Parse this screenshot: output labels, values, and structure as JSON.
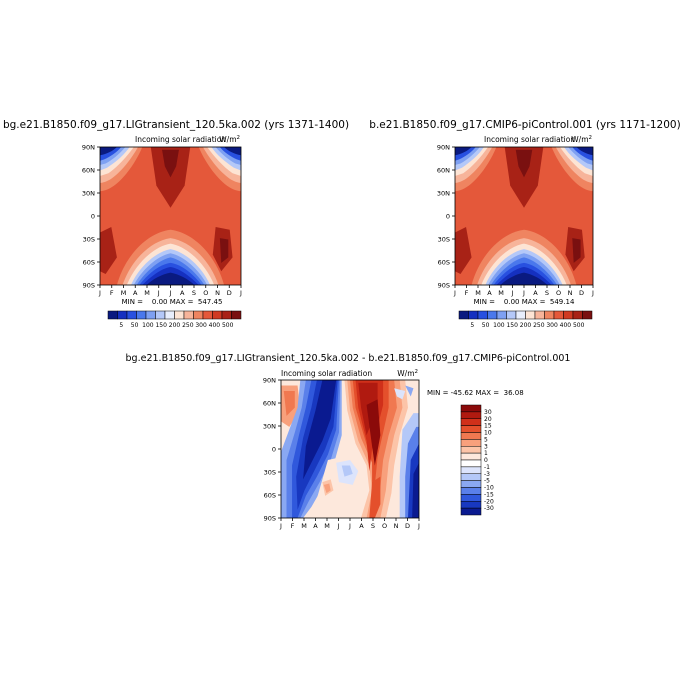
{
  "chart_data": [
    {
      "type": "heatmap",
      "title": "bg.e21.B1850.f09_g17.LIGtransient_120.5ka.002 (yrs 1371-1400)",
      "subtitle_left": "Incoming solar radiation",
      "units": "W/m",
      "units_superscript": "2",
      "stats": "MIN =    0.00 MAX =  547.45",
      "x_ticks": [
        "J",
        "F",
        "M",
        "A",
        "M",
        "J",
        "J",
        "A",
        "S",
        "O",
        "N",
        "D",
        "J"
      ],
      "y_ticks": [
        "90N",
        "60N",
        "30N",
        "0",
        "30S",
        "60S",
        "90S"
      ],
      "colorbar": {
        "labels": [
          "5",
          "50",
          "100",
          "150",
          "200",
          "250",
          "300",
          "400",
          "500"
        ],
        "colors": [
          "#0a1a80",
          "#1530c0",
          "#2850e0",
          "#4a78ec",
          "#7ea0f2",
          "#b4c8f8",
          "#e8eefc",
          "#fde4d4",
          "#f7b49a",
          "#ef8460",
          "#e4583a",
          "#d03a22",
          "#a82216",
          "#7a1010"
        ]
      },
      "field": "insolation",
      "grid": false
    },
    {
      "type": "heatmap",
      "title": "b.e21.B1850.f09_g17.CMIP6-piControl.001 (yrs 1171-1200)",
      "subtitle_left": "Incoming solar radiation",
      "units": "W/m",
      "units_superscript": "2",
      "stats": "MIN =    0.00 MAX =  549.14",
      "x_ticks": [
        "J",
        "F",
        "M",
        "A",
        "M",
        "J",
        "J",
        "A",
        "S",
        "O",
        "N",
        "D",
        "J"
      ],
      "y_ticks": [
        "90N",
        "60N",
        "30N",
        "0",
        "30S",
        "60S",
        "90S"
      ],
      "colorbar": {
        "labels": [
          "5",
          "50",
          "100",
          "150",
          "200",
          "250",
          "300",
          "400",
          "500"
        ],
        "colors": [
          "#0a1a80",
          "#1530c0",
          "#2850e0",
          "#4a78ec",
          "#7ea0f2",
          "#b4c8f8",
          "#e8eefc",
          "#fde4d4",
          "#f7b49a",
          "#ef8460",
          "#e4583a",
          "#d03a22",
          "#a82216",
          "#7a1010"
        ]
      },
      "field": "insolation",
      "grid": false
    },
    {
      "type": "heatmap",
      "title": "bg.e21.B1850.f09_g17.LIGtransient_120.5ka.002 - b.e21.B1850.f09_g17.CMIP6-piControl.001",
      "subtitle_left": "Incoming solar radiation",
      "units": "W/m",
      "units_superscript": "2",
      "stats": "MIN = -45.62 MAX =  36.08",
      "x_ticks": [
        "J",
        "F",
        "M",
        "A",
        "M",
        "J",
        "J",
        "A",
        "S",
        "O",
        "N",
        "D",
        "J"
      ],
      "y_ticks": [
        "90N",
        "60N",
        "30N",
        "0",
        "30S",
        "60S",
        "90S"
      ],
      "colorbar": {
        "labels": [
          "30",
          "20",
          "15",
          "10",
          "5",
          "3",
          "1",
          "0",
          "-1",
          "-3",
          "-5",
          "-10",
          "-15",
          "-20",
          "-30"
        ],
        "colors": [
          "#8b0a0a",
          "#b01a10",
          "#d0301a",
          "#e4502c",
          "#f07850",
          "#f8a07c",
          "#fcc4a8",
          "#fde8dc",
          "#ffffff",
          "#dce4fc",
          "#b4c8f8",
          "#8aa8f2",
          "#5a80ea",
          "#3058dc",
          "#1838c0",
          "#0a1a90"
        ]
      },
      "field": "difference",
      "grid": false
    }
  ]
}
